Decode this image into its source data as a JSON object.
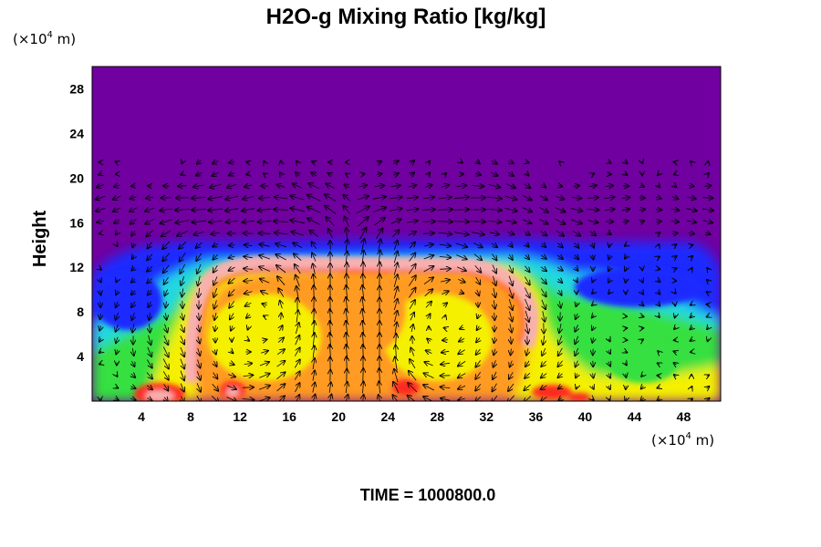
{
  "chart_data": {
    "type": "heatmap",
    "title": "H2O-g Mixing Ratio [kg/kg]",
    "ylabel": "Height",
    "x_unit": "(×10",
    "x_unit_exp": "4",
    "x_unit_tail": " m)",
    "y_unit": "(×10",
    "y_unit_exp": "4",
    "y_unit_tail": " m)",
    "xlim": [
      0,
      51
    ],
    "ylim": [
      0,
      30
    ],
    "x_ticks": [
      4,
      8,
      12,
      16,
      20,
      24,
      28,
      32,
      36,
      40,
      44,
      48
    ],
    "y_ticks": [
      4,
      8,
      12,
      16,
      20,
      24,
      28
    ],
    "overlay": "wind vector arrows",
    "colors": {
      "dry_top": "#7000a0",
      "blue": "#1a2cff",
      "cyan": "#20d8e0",
      "green": "#34e040",
      "yellow": "#f4f000",
      "orange": "#ff9a20",
      "red": "#ff2a20",
      "pink": "#f8b0b0"
    },
    "time_text": "TIME = 1000800.0"
  }
}
